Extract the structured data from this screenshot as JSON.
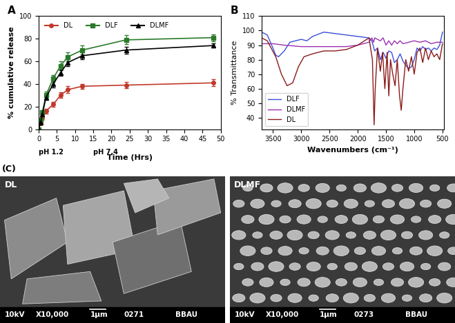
{
  "chart_data": [
    {
      "type": "line",
      "title": "A",
      "x_label": "Time (Hrs)",
      "y_label": "% cumulative release",
      "annotations": [
        "pH 1.2",
        "pH 7.4"
      ],
      "xlim": [
        0,
        50
      ],
      "xticks": [
        0,
        5,
        10,
        15,
        20,
        25,
        30,
        35,
        40,
        45,
        50
      ],
      "ylim": [
        0,
        100
      ],
      "yticks": [
        0,
        20,
        40,
        60,
        80,
        100
      ],
      "legend": "upper left",
      "x": [
        0,
        0.5,
        1,
        2,
        4,
        6,
        8,
        12,
        24,
        48
      ],
      "series": [
        {
          "name": "DL",
          "color": "#c0392b",
          "marker": "o",
          "line_style": "solid",
          "values": [
            0,
            5,
            10,
            16,
            22,
            30,
            35,
            38,
            39,
            41
          ],
          "errors": [
            0,
            1,
            1.5,
            2,
            2,
            2.5,
            3,
            2,
            2.5,
            3
          ]
        },
        {
          "name": "DLF",
          "color": "#2a7a2a",
          "marker": "s",
          "line_style": "solid",
          "values": [
            0,
            8,
            15,
            30,
            45,
            56,
            64,
            70,
            79,
            81
          ],
          "errors": [
            0,
            1,
            2,
            3,
            3,
            4,
            4,
            4,
            4,
            3
          ]
        },
        {
          "name": "DLMF",
          "color": "#000000",
          "marker": "^",
          "line_style": "solid",
          "values": [
            0,
            6,
            13,
            28,
            40,
            50,
            59,
            65,
            70,
            74
          ],
          "errors": [
            0,
            1,
            2,
            2,
            3,
            3,
            3,
            3,
            3,
            2
          ]
        }
      ]
    },
    {
      "type": "line",
      "title": "B",
      "x_label": "Wavenumbers (cm⁻¹)",
      "y_label": "% Transmittance",
      "xlim": [
        3700,
        480
      ],
      "xticks": [
        3500,
        3000,
        2500,
        2000,
        1500,
        1000,
        500
      ],
      "ylim": [
        32,
        110
      ],
      "yticks": [
        40,
        50,
        60,
        70,
        80,
        90,
        100,
        110
      ],
      "legend": "lower left",
      "series": [
        {
          "name": "DLF",
          "color": "#3b4fd8",
          "line_style": "solid",
          "x": [
            3700,
            3600,
            3500,
            3450,
            3400,
            3300,
            3200,
            3000,
            2900,
            2800,
            2600,
            2400,
            2200,
            2000,
            1800,
            1750,
            1700,
            1650,
            1600,
            1550,
            1500,
            1450,
            1400,
            1350,
            1300,
            1250,
            1200,
            1150,
            1100,
            1050,
            1000,
            950,
            900,
            850,
            800,
            750,
            700,
            650,
            600,
            550,
            500
          ],
          "values": [
            99,
            97,
            88,
            83,
            82,
            86,
            92,
            94,
            93,
            96,
            99,
            98,
            97,
            96,
            95,
            93,
            86,
            88,
            80,
            85,
            81,
            86,
            85,
            78,
            80,
            84,
            79,
            76,
            74,
            75,
            80,
            88,
            86,
            89,
            87,
            88,
            86,
            88,
            87,
            90,
            99
          ]
        },
        {
          "name": "DLMF",
          "color": "#9b30b0",
          "line_style": "solid",
          "x": [
            3700,
            3500,
            3300,
            3000,
            2800,
            2500,
            2200,
            2000,
            1800,
            1750,
            1720,
            1700,
            1600,
            1550,
            1500,
            1450,
            1400,
            1350,
            1300,
            1250,
            1200,
            1100,
            1000,
            900,
            800,
            700,
            600,
            500
          ],
          "values": [
            91,
            91,
            90,
            89,
            89,
            89,
            89,
            90,
            92,
            95,
            92,
            95,
            93,
            95,
            90,
            93,
            90,
            93,
            91,
            93,
            91,
            92,
            93,
            92,
            93,
            91,
            92,
            92
          ]
        },
        {
          "name": "DL",
          "color": "#8b1a1a",
          "line_style": "solid",
          "x": [
            3700,
            3600,
            3450,
            3350,
            3250,
            3150,
            3050,
            2950,
            2800,
            2600,
            2400,
            2200,
            2000,
            1800,
            1740,
            1710,
            1690,
            1650,
            1600,
            1560,
            1520,
            1480,
            1450,
            1420,
            1380,
            1340,
            1300,
            1260,
            1230,
            1200,
            1150,
            1100,
            1050,
            1000,
            950,
            900,
            850,
            800,
            750,
            700,
            650,
            600,
            550,
            500
          ],
          "values": [
            95,
            93,
            82,
            70,
            62,
            64,
            75,
            82,
            84,
            86,
            86,
            87,
            90,
            95,
            80,
            35,
            60,
            88,
            72,
            85,
            60,
            85,
            55,
            80,
            70,
            62,
            80,
            55,
            45,
            60,
            80,
            72,
            82,
            70,
            85,
            88,
            78,
            88,
            80,
            86,
            82,
            84,
            80,
            91
          ]
        }
      ]
    }
  ],
  "images": {
    "title": "(C)",
    "panels": [
      {
        "label": "DL",
        "caption": [
          "10kV",
          "X10,000",
          "1μm",
          "0271",
          "BBAU"
        ]
      },
      {
        "label": "DLMF",
        "caption": [
          "10kV",
          "X10,000",
          "1μm",
          "0273",
          "BBAU"
        ]
      }
    ]
  }
}
